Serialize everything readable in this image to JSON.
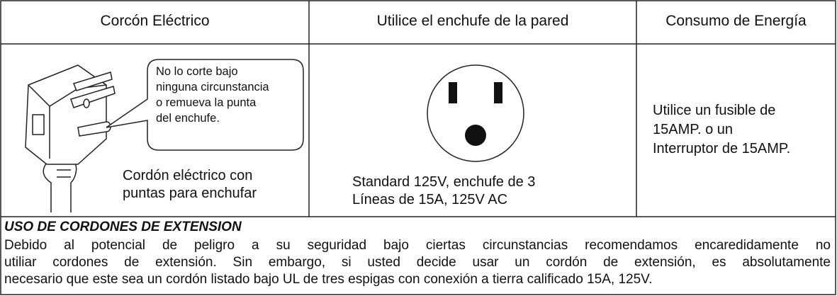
{
  "table": {
    "header": [
      "Corcón Eléctrico",
      "Utilice el enchufe de la pared",
      "Consumo de Energía"
    ],
    "plug": {
      "callout": [
        "No lo corte bajo",
        "ninguna circunstancia",
        "o remueva la punta",
        "del enchufe."
      ],
      "caption": [
        "Cordón eléctrico con",
        "puntas para enchufar"
      ]
    },
    "outlet": {
      "caption": [
        "Standard 125V, enchufe de 3",
        "Líneas de 15A, 125V AC"
      ]
    },
    "power": {
      "text": [
        "Utilice un fusible de",
        "15AMP. o un",
        "Interruptor de 15AMP."
      ]
    }
  },
  "notice": {
    "title": "USO DE CORDONES DE EXTENSION",
    "lines": [
      "Debido al potencial de peligro a su seguridad bajo ciertas circunstancias recomendamos encaredidamente no",
      "utiliar cordones de extensión. Sin embargo, si usted decide usar un cordón de extensión, es absolutamente",
      "necesario que este sea un cordón listado bajo UL de tres espigas con conexión a tierra calificado 15A, 125V."
    ]
  }
}
